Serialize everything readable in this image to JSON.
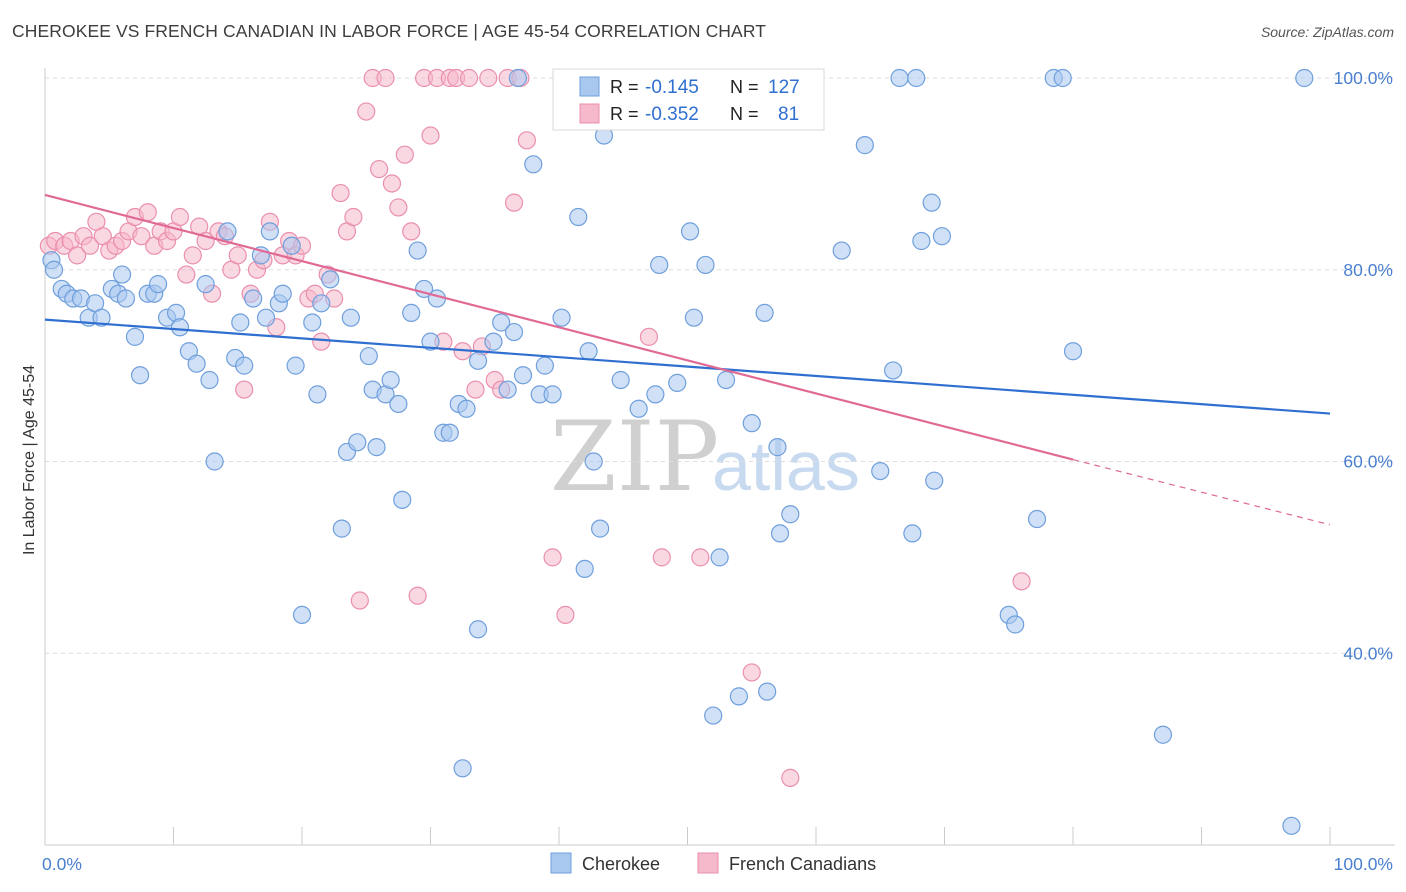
{
  "title": "CHEROKEE VS FRENCH CANADIAN IN LABOR FORCE | AGE 45-54 CORRELATION CHART",
  "source": "Source: ZipAtlas.com",
  "watermark": {
    "zip": "ZIP",
    "atlas": "atlas"
  },
  "colors": {
    "cherokee_fill": "#a9c8f0",
    "cherokee_stroke": "#6f9fdc",
    "cherokee_line": "#2f6fd0",
    "french_fill": "#f6b8cb",
    "french_stroke": "#ea8fae",
    "french_line": "#e06a95",
    "grid": "#dddddd",
    "tick_text": "#4a7fd0"
  },
  "legend": {
    "row1": {
      "r_label": "R =",
      "r_value": "-0.145",
      "n_label": "N =",
      "n_value": "127"
    },
    "row2": {
      "r_label": "R =",
      "r_value": "-0.352",
      "n_label": "N =",
      "n_value": "81"
    }
  },
  "chart_data": {
    "type": "scatter",
    "xlabel": "",
    "ylabel": "In Labor Force | Age 45-54",
    "xlim": [
      0,
      100
    ],
    "ylim": [
      20,
      100
    ],
    "x_tick_labels": [
      {
        "value": 0,
        "label": "0.0%"
      },
      {
        "value": 100,
        "label": "100.0%"
      }
    ],
    "y_tick_labels": [
      {
        "value": 40,
        "label": "40.0%"
      },
      {
        "value": 60,
        "label": "60.0%"
      },
      {
        "value": 80,
        "label": "80.0%"
      },
      {
        "value": 100,
        "label": "100.0%"
      }
    ],
    "series": [
      {
        "name": "Cherokee",
        "trend": {
          "x": [
            0,
            100
          ],
          "y": [
            74.8,
            65.0
          ]
        },
        "points": [
          [
            0.5,
            81
          ],
          [
            0.7,
            80
          ],
          [
            1.3,
            78
          ],
          [
            1.7,
            77.5
          ],
          [
            2.2,
            77
          ],
          [
            2.8,
            77
          ],
          [
            3.4,
            75
          ],
          [
            3.9,
            76.5
          ],
          [
            4.4,
            75
          ],
          [
            5.2,
            78
          ],
          [
            5.7,
            77.5
          ],
          [
            6.0,
            79.5
          ],
          [
            6.3,
            77
          ],
          [
            7.0,
            73
          ],
          [
            7.4,
            69
          ],
          [
            8.0,
            77.5
          ],
          [
            8.5,
            77.5
          ],
          [
            8.8,
            78.5
          ],
          [
            9.5,
            75
          ],
          [
            10.2,
            75.5
          ],
          [
            10.5,
            74
          ],
          [
            11.2,
            71.5
          ],
          [
            11.8,
            70.2
          ],
          [
            12.5,
            78.5
          ],
          [
            12.8,
            68.5
          ],
          [
            13.2,
            60
          ],
          [
            14.2,
            84
          ],
          [
            14.8,
            70.8
          ],
          [
            15.2,
            74.5
          ],
          [
            15.5,
            70
          ],
          [
            16.2,
            77
          ],
          [
            16.8,
            81.5
          ],
          [
            17.2,
            75
          ],
          [
            17.5,
            84
          ],
          [
            18.2,
            76.5
          ],
          [
            18.5,
            77.5
          ],
          [
            19.2,
            82.5
          ],
          [
            19.5,
            70
          ],
          [
            20.0,
            44
          ],
          [
            20.8,
            74.5
          ],
          [
            21.2,
            67
          ],
          [
            21.5,
            76.5
          ],
          [
            22.2,
            79
          ],
          [
            23.1,
            53
          ],
          [
            23.5,
            61
          ],
          [
            23.8,
            75
          ],
          [
            24.3,
            62
          ],
          [
            25.2,
            71
          ],
          [
            25.5,
            67.5
          ],
          [
            25.8,
            61.5
          ],
          [
            26.5,
            67
          ],
          [
            26.9,
            68.5
          ],
          [
            27.5,
            66
          ],
          [
            27.8,
            56
          ],
          [
            28.5,
            75.5
          ],
          [
            29.0,
            82
          ],
          [
            29.5,
            78
          ],
          [
            30.0,
            72.5
          ],
          [
            30.5,
            77
          ],
          [
            31.0,
            63
          ],
          [
            31.5,
            63
          ],
          [
            32.2,
            66
          ],
          [
            32.8,
            65.5
          ],
          [
            32.5,
            28
          ],
          [
            33.7,
            70.5
          ],
          [
            33.7,
            42.5
          ],
          [
            34.9,
            72.5
          ],
          [
            35.5,
            74.5
          ],
          [
            36.0,
            67.5
          ],
          [
            36.5,
            73.5
          ],
          [
            36.8,
            100
          ],
          [
            37.2,
            69
          ],
          [
            38.0,
            91
          ],
          [
            38.5,
            67
          ],
          [
            38.9,
            70
          ],
          [
            39.5,
            67
          ],
          [
            40.2,
            75
          ],
          [
            41.5,
            85.5
          ],
          [
            42.0,
            48.8
          ],
          [
            42.3,
            71.5
          ],
          [
            42.7,
            60
          ],
          [
            43.2,
            53
          ],
          [
            43.5,
            94
          ],
          [
            44.8,
            68.5
          ],
          [
            46.2,
            65.5
          ],
          [
            47.5,
            67
          ],
          [
            47.8,
            80.5
          ],
          [
            49.2,
            68.2
          ],
          [
            50.2,
            84
          ],
          [
            50.5,
            75
          ],
          [
            51.4,
            80.5
          ],
          [
            52.0,
            33.5
          ],
          [
            52.5,
            50
          ],
          [
            53.0,
            68.5
          ],
          [
            54.0,
            35.5
          ],
          [
            55.0,
            64
          ],
          [
            56.0,
            75.5
          ],
          [
            56.2,
            36
          ],
          [
            57.0,
            61.5
          ],
          [
            57.2,
            52.5
          ],
          [
            58.0,
            54.5
          ],
          [
            62.0,
            82
          ],
          [
            63.8,
            93
          ],
          [
            65.0,
            59
          ],
          [
            66.0,
            69.5
          ],
          [
            66.5,
            100
          ],
          [
            67.8,
            100
          ],
          [
            67.5,
            52.5
          ],
          [
            68.2,
            83
          ],
          [
            69.0,
            87
          ],
          [
            69.2,
            58
          ],
          [
            69.8,
            83.5
          ],
          [
            75.0,
            44
          ],
          [
            75.5,
            43
          ],
          [
            77.2,
            54
          ],
          [
            78.5,
            100
          ],
          [
            79.2,
            100
          ],
          [
            80.0,
            71.5
          ],
          [
            87.0,
            31.5
          ],
          [
            97.0,
            22
          ],
          [
            98.0,
            100
          ]
        ]
      },
      {
        "name": "French Canadians",
        "trend": {
          "x": [
            0,
            80
          ],
          "y": [
            87.8,
            60.2
          ]
        },
        "trend_dashed": {
          "x": [
            80,
            100
          ],
          "y": [
            60.2,
            53.4
          ]
        },
        "points": [
          [
            0.3,
            82.5
          ],
          [
            0.8,
            83
          ],
          [
            1.5,
            82.5
          ],
          [
            2.0,
            83
          ],
          [
            2.5,
            81.5
          ],
          [
            3.0,
            83.5
          ],
          [
            3.5,
            82.5
          ],
          [
            4.0,
            85
          ],
          [
            4.5,
            83.5
          ],
          [
            5.0,
            82
          ],
          [
            5.5,
            82.5
          ],
          [
            6.0,
            83
          ],
          [
            6.5,
            84
          ],
          [
            7.0,
            85.5
          ],
          [
            7.5,
            83.5
          ],
          [
            8.0,
            86
          ],
          [
            8.5,
            82.5
          ],
          [
            9.0,
            84
          ],
          [
            9.5,
            83
          ],
          [
            10.0,
            84
          ],
          [
            10.5,
            85.5
          ],
          [
            11.0,
            79.5
          ],
          [
            11.5,
            81.5
          ],
          [
            12.0,
            84.5
          ],
          [
            12.5,
            83
          ],
          [
            13.0,
            77.5
          ],
          [
            13.5,
            84
          ],
          [
            14.0,
            83.5
          ],
          [
            14.5,
            80
          ],
          [
            15.0,
            81.5
          ],
          [
            15.5,
            67.5
          ],
          [
            16.0,
            77.5
          ],
          [
            16.5,
            80
          ],
          [
            17.0,
            81
          ],
          [
            17.5,
            85
          ],
          [
            18.0,
            74
          ],
          [
            18.5,
            81.5
          ],
          [
            19.0,
            83
          ],
          [
            19.5,
            81.5
          ],
          [
            20.0,
            82.5
          ],
          [
            20.5,
            77
          ],
          [
            21.0,
            77.5
          ],
          [
            21.5,
            72.5
          ],
          [
            22.0,
            79.5
          ],
          [
            22.5,
            77
          ],
          [
            23.0,
            88
          ],
          [
            23.5,
            84
          ],
          [
            24.0,
            85.5
          ],
          [
            24.5,
            45.5
          ],
          [
            25.0,
            96.5
          ],
          [
            25.5,
            100
          ],
          [
            26.0,
            90.5
          ],
          [
            26.5,
            100
          ],
          [
            27.0,
            89
          ],
          [
            27.5,
            86.5
          ],
          [
            28.0,
            92
          ],
          [
            28.5,
            84
          ],
          [
            29.0,
            46
          ],
          [
            29.5,
            100
          ],
          [
            30.0,
            94
          ],
          [
            30.5,
            100
          ],
          [
            31.0,
            72.5
          ],
          [
            31.5,
            100
          ],
          [
            32.0,
            100
          ],
          [
            32.5,
            71.5
          ],
          [
            33.0,
            100
          ],
          [
            33.5,
            67.5
          ],
          [
            34.0,
            72
          ],
          [
            34.5,
            100
          ],
          [
            35.0,
            68.5
          ],
          [
            35.5,
            67.5
          ],
          [
            36.0,
            100
          ],
          [
            36.5,
            87
          ],
          [
            37.0,
            100
          ],
          [
            37.5,
            93.5
          ],
          [
            39.5,
            50
          ],
          [
            40.5,
            44
          ],
          [
            47.0,
            73
          ],
          [
            48.0,
            50
          ],
          [
            51.0,
            50
          ],
          [
            55.0,
            38
          ],
          [
            58.0,
            27
          ],
          [
            76.0,
            47.5
          ]
        ]
      }
    ]
  }
}
